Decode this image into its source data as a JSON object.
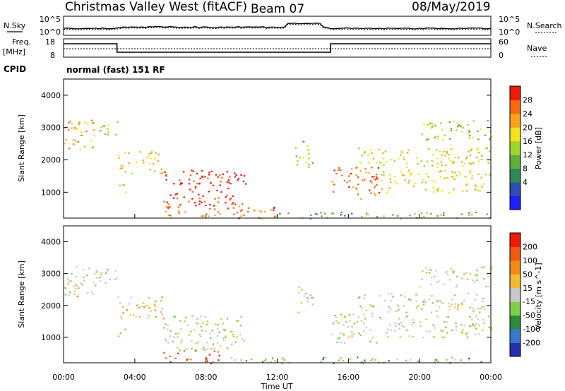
{
  "header": {
    "station": "Christmas Valley West (fitACF)",
    "beam": "Beam 07",
    "date": "08/May/2019"
  },
  "top_panels": {
    "nsky_label": "N.Sky",
    "nsearch_label": "N.Search",
    "freq_label": "Freq.",
    "freq_unit": "[MHz]",
    "nave_label": "Nave",
    "cpid_label": "CPID",
    "cpid_value": "normal (fast) 151 RF",
    "noise_ticks": [
      "10^5",
      "10^0"
    ],
    "freq_ticks": [
      "18",
      "8"
    ],
    "nave_ticks": [
      "60",
      "0"
    ]
  },
  "x_axis": {
    "label": "Time UT",
    "ticks": [
      "00:00",
      "04:00",
      "08:00",
      "12:00",
      "16:00",
      "20:00",
      "00:00"
    ]
  },
  "chart_data": [
    {
      "type": "heatmap",
      "quantity": "Power",
      "colorbar_label": "Power [dB]",
      "ylabel": "Slant Range [km]",
      "xlabel": "Time UT",
      "xlim_hours": [
        0,
        24
      ],
      "ylim_km": [
        200,
        4500
      ],
      "y_ticks": [
        "1000",
        "2000",
        "3000",
        "4000"
      ],
      "colorbar_ticks": [
        "28",
        "24",
        "20",
        "16",
        "12",
        "8",
        "4"
      ],
      "colorbar_colors": [
        "#1f1fff",
        "#2c4fb0",
        "#2f8a5a",
        "#5fae3c",
        "#9fd42a",
        "#f2e21a",
        "#f9a31a",
        "#f86a12",
        "#f01a0a"
      ],
      "regions": [
        {
          "t0": 0.0,
          "t1": 1.8,
          "r0": 2300,
          "r1": 3250,
          "level": 6
        },
        {
          "t0": 1.8,
          "t1": 3.0,
          "r0": 2700,
          "r1": 3200,
          "level": 4
        },
        {
          "t0": 3.0,
          "t1": 5.6,
          "r0": 1600,
          "r1": 2300,
          "level": 5
        },
        {
          "t0": 3.0,
          "t1": 3.5,
          "r0": 1000,
          "r1": 1400,
          "level": 5
        },
        {
          "t0": 5.6,
          "t1": 10.2,
          "r0": 600,
          "r1": 1700,
          "level": 8
        },
        {
          "t0": 5.6,
          "t1": 12.0,
          "r0": 200,
          "r1": 600,
          "level": 7
        },
        {
          "t0": 13.0,
          "t1": 14.0,
          "r0": 1800,
          "r1": 2600,
          "level": 4
        },
        {
          "t0": 15.0,
          "t1": 17.8,
          "r0": 800,
          "r1": 1800,
          "level": 7
        },
        {
          "t0": 16.5,
          "t1": 24.0,
          "r0": 1800,
          "r1": 2400,
          "level": 5
        },
        {
          "t0": 17.8,
          "t1": 24.0,
          "r0": 1000,
          "r1": 1700,
          "level": 5
        },
        {
          "t0": 20.0,
          "t1": 24.0,
          "r0": 2600,
          "r1": 3250,
          "level": 4
        },
        {
          "t0": 12.0,
          "t1": 24.0,
          "r0": 200,
          "r1": 400,
          "level": 3
        }
      ]
    },
    {
      "type": "heatmap",
      "quantity": "Velocity",
      "colorbar_label": "Velocity [m s^-1]",
      "ylabel": "Slant Range [km]",
      "xlabel": "Time UT",
      "xlim_hours": [
        0,
        24
      ],
      "ylim_km": [
        200,
        4500
      ],
      "y_ticks": [
        "1000",
        "2000",
        "3000",
        "4000"
      ],
      "colorbar_ticks": [
        "200",
        "100",
        "50",
        "15",
        "-15",
        "-50",
        "-100",
        "-200"
      ],
      "colorbar_colors": [
        "#2430b0",
        "#3a78c8",
        "#2e8a3c",
        "#7ed04a",
        "#c8c8c8",
        "#f2bc30",
        "#f28a18",
        "#f05a10",
        "#f01a0a"
      ],
      "regions": [
        {
          "t0": 0.0,
          "t1": 1.8,
          "r0": 2300,
          "r1": 3250,
          "level": 4
        },
        {
          "t0": 1.8,
          "t1": 3.0,
          "r0": 2700,
          "r1": 3200,
          "level": 4
        },
        {
          "t0": 3.0,
          "t1": 5.6,
          "r0": 1600,
          "r1": 2300,
          "level": 5
        },
        {
          "t0": 3.0,
          "t1": 3.5,
          "r0": 1000,
          "r1": 1400,
          "level": 4
        },
        {
          "t0": 5.6,
          "t1": 10.2,
          "r0": 600,
          "r1": 1700,
          "level": 4
        },
        {
          "t0": 5.6,
          "t1": 9.0,
          "r0": 200,
          "r1": 600,
          "level": 7
        },
        {
          "t0": 9.0,
          "t1": 16.0,
          "r0": 200,
          "r1": 400,
          "level": 3
        },
        {
          "t0": 13.0,
          "t1": 14.0,
          "r0": 1800,
          "r1": 2600,
          "level": 4
        },
        {
          "t0": 15.0,
          "t1": 17.8,
          "r0": 800,
          "r1": 1800,
          "level": 4
        },
        {
          "t0": 16.5,
          "t1": 24.0,
          "r0": 1800,
          "r1": 2400,
          "level": 4
        },
        {
          "t0": 17.8,
          "t1": 24.0,
          "r0": 1000,
          "r1": 1700,
          "level": 4
        },
        {
          "t0": 20.0,
          "t1": 24.0,
          "r0": 2600,
          "r1": 3250,
          "level": 4
        },
        {
          "t0": 16.0,
          "t1": 24.0,
          "r0": 200,
          "r1": 400,
          "level": 3
        }
      ]
    }
  ]
}
